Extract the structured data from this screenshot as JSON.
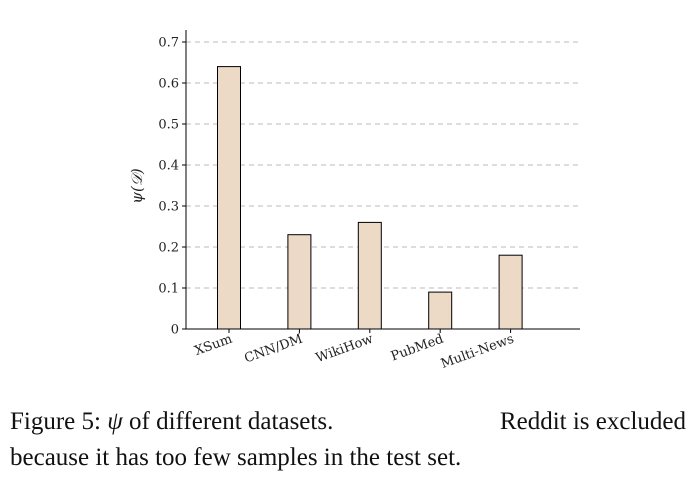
{
  "chart_data": {
    "type": "bar",
    "categories": [
      "XSum",
      "CNN/DM",
      "WikiHow",
      "PubMed",
      "Multi-News"
    ],
    "values": [
      0.64,
      0.23,
      0.26,
      0.09,
      0.18
    ],
    "ylabel": "ψ(𝒟)",
    "ylim": [
      0,
      0.7
    ],
    "yticks": [
      "0",
      "0.1",
      "0.2",
      "0.3",
      "0.4",
      "0.5",
      "0.6",
      "0.7"
    ],
    "grid": "horizontal dashed",
    "bar_color": "#ecd9c6",
    "bar_edge": "#000000",
    "grid_color": "#bbbbbb"
  },
  "caption": {
    "prefix": "Figure 5:",
    "symbol": "ψ",
    "line1_rest": "of different datasets.",
    "line1_end": "Reddit is excluded",
    "line2": "because it has too few samples in the test set."
  }
}
